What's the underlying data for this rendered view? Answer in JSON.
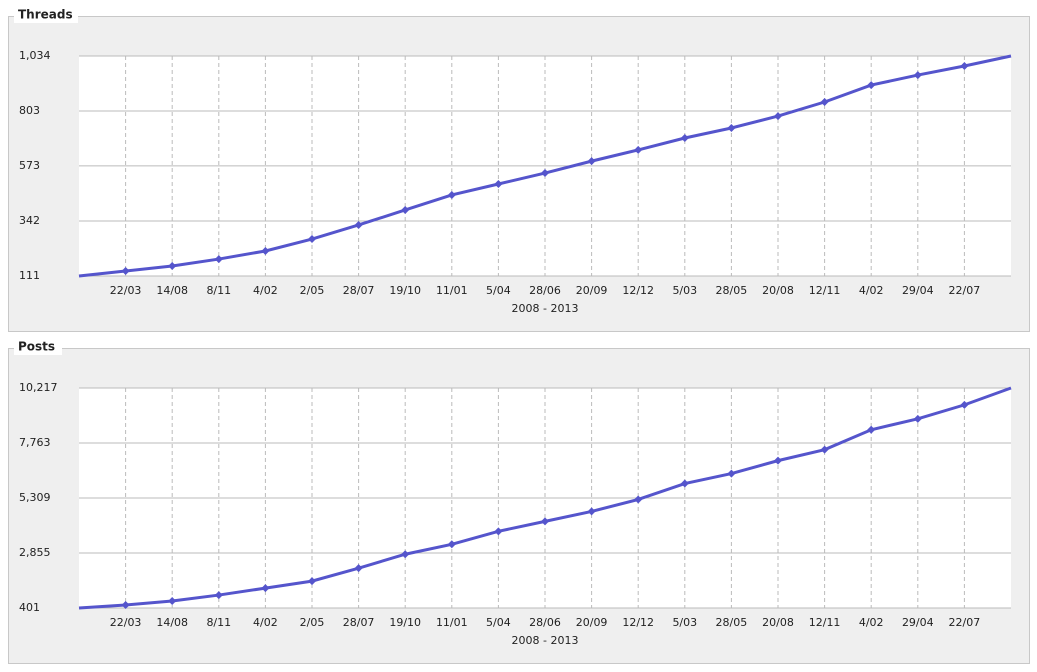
{
  "chart_data": [
    {
      "type": "line",
      "title": "Threads",
      "x_label": "2008 - 2013",
      "color": "#5555cc",
      "grid": true,
      "categories": [
        null,
        "22/03",
        "14/08",
        "8/11",
        "4/02",
        "2/05",
        "28/07",
        "19/10",
        "11/01",
        "5/04",
        "28/06",
        "20/09",
        "12/12",
        "5/03",
        "28/05",
        "20/08",
        "12/11",
        "4/02",
        "29/04",
        "22/07",
        null
      ],
      "values": [
        111,
        132,
        153,
        182,
        216,
        266,
        325,
        388,
        451,
        497,
        543,
        593,
        640,
        690,
        732,
        782,
        841,
        912,
        954,
        992,
        1034
      ],
      "ylim": [
        111,
        1034
      ],
      "yticks": [
        111,
        342,
        573,
        803,
        {
          "value": 1034,
          "label": "1,034"
        }
      ]
    },
    {
      "type": "line",
      "title": "Posts",
      "x_label": "2008 - 2013",
      "color": "#5555cc",
      "grid": true,
      "categories": [
        null,
        "22/03",
        "14/08",
        "8/11",
        "4/02",
        "2/05",
        "28/07",
        "19/10",
        "11/01",
        "5/04",
        "28/06",
        "20/09",
        "12/12",
        "5/03",
        "28/05",
        "20/08",
        "12/11",
        "4/02",
        "29/04",
        "22/07",
        null
      ],
      "values": [
        401,
        534,
        712,
        978,
        1289,
        1600,
        2178,
        2800,
        3244,
        3822,
        4266,
        4710,
        5243,
        5954,
        6398,
        6976,
        7465,
        8354,
        8842,
        9464,
        10217
      ],
      "ylim": [
        401,
        10217
      ],
      "yticks": [
        401,
        {
          "value": 2855,
          "label": "2,855"
        },
        {
          "value": 5309,
          "label": "5,309"
        },
        {
          "value": 7763,
          "label": "7,763"
        },
        {
          "value": 10217,
          "label": "10,217"
        }
      ]
    }
  ]
}
